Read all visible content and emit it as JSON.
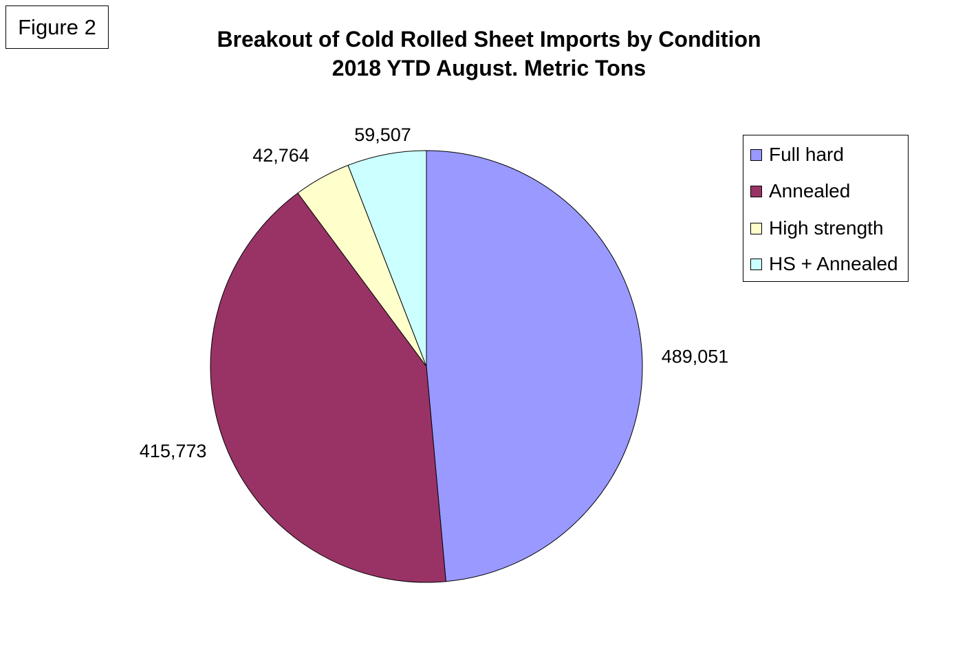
{
  "figure_label": "Figure 2",
  "chart_data": {
    "type": "pie",
    "title_lines": [
      "Breakout of Cold Rolled Sheet Imports by Condition",
      "2018 YTD August. Metric Tons"
    ],
    "slices": [
      {
        "label": "Full hard",
        "value": 489051,
        "value_label": "489,051",
        "color": "#9999ff"
      },
      {
        "label": "Annealed",
        "value": 415773,
        "value_label": "415,773",
        "color": "#993366"
      },
      {
        "label": "High strength",
        "value": 42764,
        "value_label": "42,764",
        "color": "#ffffcc"
      },
      {
        "label": "HS + Annealed",
        "value": 59507,
        "value_label": "59,507",
        "color": "#ccffff"
      }
    ],
    "start_angle": "12 o'clock",
    "direction": "clockwise",
    "legend_position": "right"
  }
}
